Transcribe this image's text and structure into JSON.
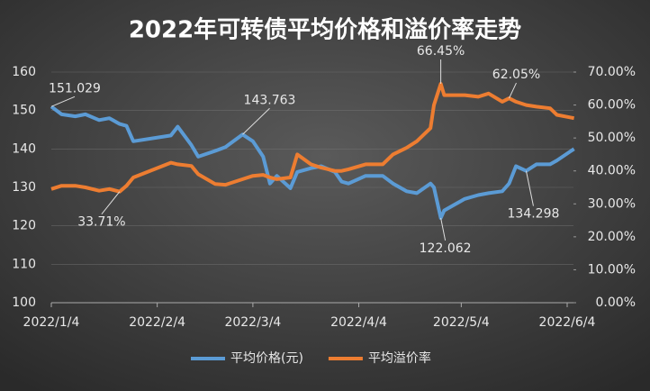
{
  "chart_data": {
    "type": "line",
    "title": "2022年可转债平均价格和溢价率走势",
    "x": [
      "2022/1/4",
      "2022/1/7",
      "2022/1/11",
      "2022/1/14",
      "2022/1/18",
      "2022/1/21",
      "2022/1/24",
      "2022/1/26",
      "2022/1/28",
      "2022/2/8",
      "2022/2/10",
      "2022/2/14",
      "2022/2/16",
      "2022/2/21",
      "2022/2/24",
      "2022/3/1",
      "2022/3/4",
      "2022/3/7",
      "2022/3/9",
      "2022/3/11",
      "2022/3/15",
      "2022/3/17",
      "2022/3/21",
      "2022/3/24",
      "2022/3/28",
      "2022/3/30",
      "2022/4/1",
      "2022/4/6",
      "2022/4/11",
      "2022/4/14",
      "2022/4/18",
      "2022/4/21",
      "2022/4/25",
      "2022/4/26",
      "2022/4/28",
      "2022/4/29",
      "2022/5/5",
      "2022/5/9",
      "2022/5/12",
      "2022/5/16",
      "2022/5/18",
      "2022/5/20",
      "2022/5/23",
      "2022/5/26",
      "2022/5/30",
      "2022/6/1",
      "2022/6/6"
    ],
    "series": [
      {
        "name": "平均价格(元)",
        "color": "#5b9bd5",
        "values": [
          151.029,
          149,
          148.5,
          149,
          147.5,
          148,
          146.5,
          146,
          142,
          143.5,
          145.8,
          141,
          138,
          139.5,
          140.5,
          143.763,
          142,
          138,
          131,
          133,
          129.8,
          134,
          135,
          135.5,
          134,
          131.5,
          131,
          133,
          133,
          131,
          129,
          128.5,
          131,
          130,
          122.062,
          124,
          127,
          128,
          128.5,
          129,
          131,
          135.5,
          134.298,
          136,
          136,
          137,
          140
        ],
        "value_labels": [
          "151.029",
          null,
          null,
          null,
          null,
          null,
          null,
          null,
          null,
          null,
          null,
          null,
          null,
          null,
          null,
          "143.763",
          null,
          null,
          null,
          null,
          null,
          null,
          null,
          null,
          null,
          null,
          null,
          null,
          null,
          null,
          null,
          null,
          null,
          null,
          "122.062",
          null,
          null,
          null,
          null,
          null,
          null,
          null,
          "134.298",
          null,
          null,
          null,
          null
        ]
      },
      {
        "name": "平均溢价率",
        "color": "#ed7d31",
        "axis": "y2",
        "values": [
          34.5,
          35.5,
          35.5,
          35,
          34,
          34.5,
          33.71,
          35.5,
          38,
          42.5,
          42,
          41.5,
          39,
          36,
          35.8,
          37.5,
          38.5,
          38.8,
          38,
          37.5,
          38,
          45,
          42,
          41,
          40,
          40,
          40.5,
          42,
          42,
          45,
          47,
          49,
          53,
          60,
          66.45,
          63,
          63,
          62.5,
          63.5,
          61,
          62.05,
          61,
          60,
          59.5,
          59,
          57,
          56
        ],
        "value_labels": [
          null,
          null,
          null,
          null,
          null,
          null,
          "33.71%",
          null,
          null,
          null,
          null,
          null,
          null,
          null,
          null,
          null,
          null,
          null,
          null,
          null,
          null,
          null,
          null,
          null,
          null,
          null,
          null,
          null,
          null,
          null,
          null,
          null,
          null,
          null,
          "66.45%",
          null,
          null,
          null,
          null,
          null,
          "62.05%",
          null,
          null,
          null,
          null,
          null,
          null
        ]
      }
    ],
    "xticks": [
      "2022/1/4",
      "2022/2/4",
      "2022/3/4",
      "2022/4/4",
      "2022/5/4",
      "2022/6/4"
    ],
    "ylim": [
      100,
      160
    ],
    "yticks": [
      100,
      110,
      120,
      130,
      140,
      150,
      160
    ],
    "y2lim": [
      0,
      70
    ],
    "y2ticks": [
      {
        "value": 0,
        "label": "0.00%"
      },
      {
        "value": 10,
        "label": "10.00%"
      },
      {
        "value": 20,
        "label": "20.00%"
      },
      {
        "value": 30,
        "label": "30.00%"
      },
      {
        "value": 40,
        "label": "40.00%"
      },
      {
        "value": 50,
        "label": "50.00%"
      },
      {
        "value": 60,
        "label": "60.00%"
      },
      {
        "value": 70,
        "label": "70.00%"
      }
    ],
    "grid": true,
    "legend": "bottom"
  }
}
